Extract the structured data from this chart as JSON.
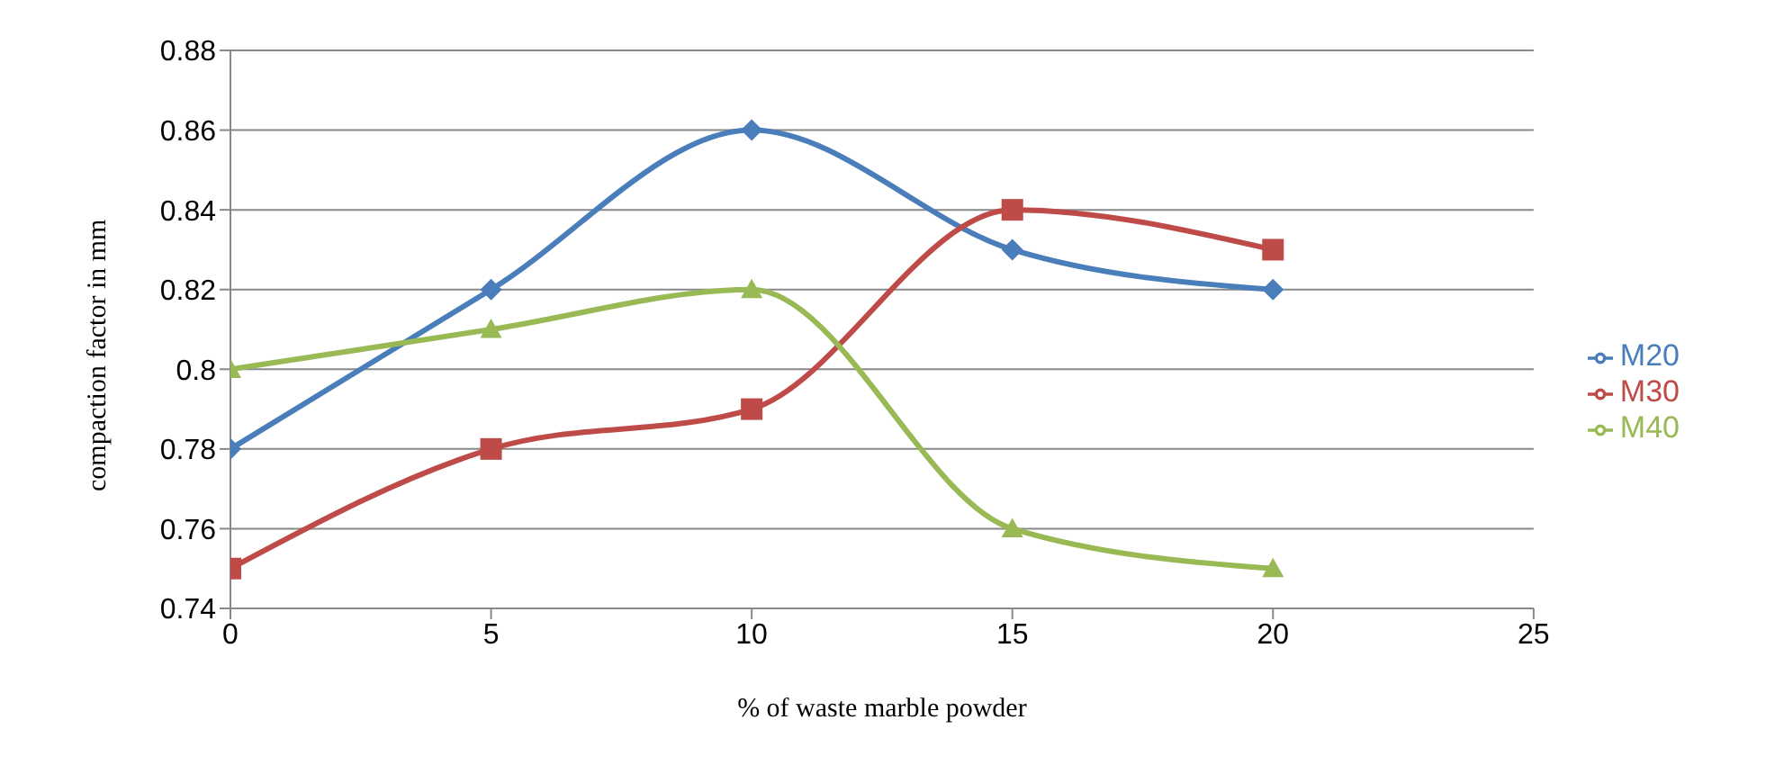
{
  "chart_data": {
    "type": "line",
    "xlabel": "% of waste marble powder",
    "ylabel": "compaction factor in mm",
    "x": [
      0,
      5,
      10,
      15,
      20
    ],
    "series": [
      {
        "name": "M20",
        "color": "#4a7ebb",
        "values": [
          0.78,
          0.82,
          0.86,
          0.83,
          0.82
        ],
        "marker": "diamond"
      },
      {
        "name": "M30",
        "color": "#be4b48",
        "values": [
          0.75,
          0.78,
          0.79,
          0.84,
          0.83
        ],
        "marker": "square"
      },
      {
        "name": "M40",
        "color": "#98b954",
        "values": [
          0.8,
          0.81,
          0.82,
          0.76,
          0.75
        ],
        "marker": "triangle"
      }
    ],
    "xlim": [
      0,
      25
    ],
    "xticks": [
      0,
      5,
      10,
      15,
      20,
      25
    ],
    "ylim": [
      0.74,
      0.88
    ],
    "yticks": [
      0.74,
      0.76,
      0.78,
      0.8,
      0.82,
      0.84,
      0.86,
      0.88
    ],
    "grid": "y",
    "legend": "right"
  }
}
